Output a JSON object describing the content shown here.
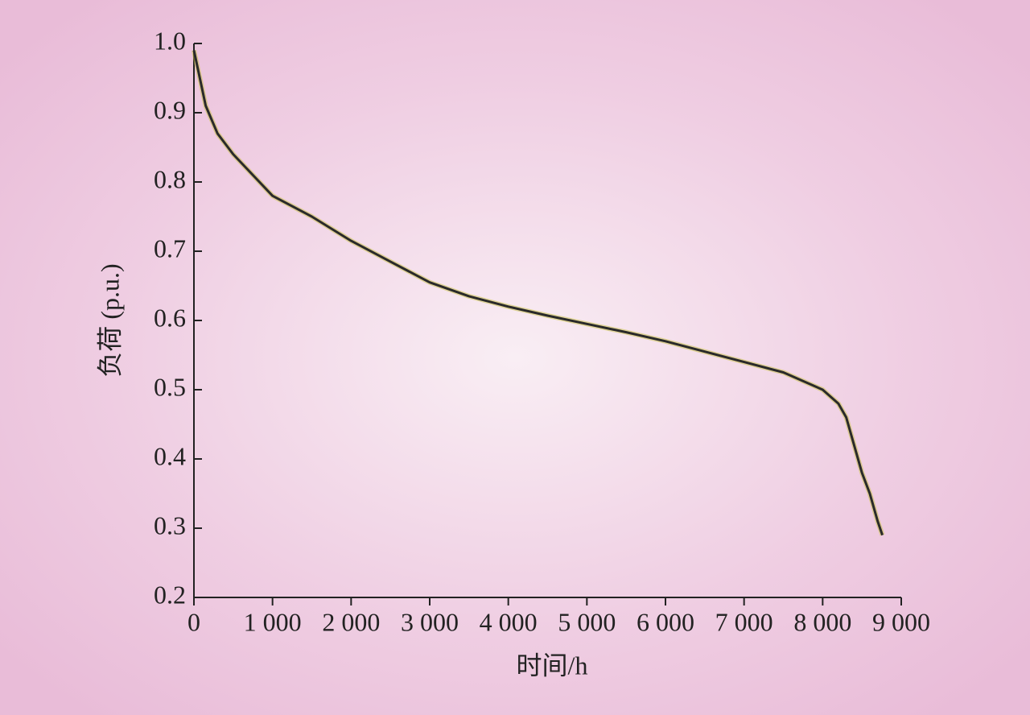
{
  "chart_data": {
    "type": "line",
    "x_label": "时间/h",
    "y_label": "负荷 (p.u.)",
    "x": [
      0,
      150,
      300,
      500,
      1000,
      1500,
      2000,
      2500,
      3000,
      3500,
      4000,
      4500,
      5000,
      5500,
      6000,
      6500,
      7000,
      7500,
      8000,
      8200,
      8300,
      8400,
      8500,
      8600,
      8700,
      8760
    ],
    "series": [
      {
        "color": "#2a2a2a",
        "values": [
          0.99,
          0.91,
          0.87,
          0.84,
          0.78,
          0.75,
          0.715,
          0.685,
          0.655,
          0.635,
          0.62,
          0.607,
          0.595,
          0.583,
          0.57,
          0.555,
          0.54,
          0.525,
          0.5,
          0.48,
          0.46,
          0.42,
          0.38,
          0.35,
          0.31,
          0.29
        ]
      }
    ],
    "xlim": [
      0,
      9000
    ],
    "ylim": [
      0.2,
      1.0
    ],
    "xticks": [
      0,
      {
        "value": 1000,
        "label": "1 000"
      },
      {
        "value": 2000,
        "label": "2 000"
      },
      {
        "value": 3000,
        "label": "3 000"
      },
      {
        "value": 4000,
        "label": "4 000"
      },
      {
        "value": 5000,
        "label": "5 000"
      },
      {
        "value": 6000,
        "label": "6 000"
      },
      {
        "value": 7000,
        "label": "7 000"
      },
      {
        "value": 8000,
        "label": "8 000"
      },
      {
        "value": 9000,
        "label": "9 000"
      }
    ],
    "yticks": [
      {
        "value": 0.2,
        "label": "0.2"
      },
      {
        "value": 0.3,
        "label": "0.3"
      },
      {
        "value": 0.4,
        "label": "0.4"
      },
      {
        "value": 0.5,
        "label": "0.5"
      },
      {
        "value": 0.6,
        "label": "0.6"
      },
      {
        "value": 0.7,
        "label": "0.7"
      },
      {
        "value": 0.8,
        "label": "0.8"
      },
      {
        "value": 0.9,
        "label": "0.9"
      },
      {
        "value": 1.0,
        "label": "1.0"
      }
    ],
    "grid": false
  }
}
